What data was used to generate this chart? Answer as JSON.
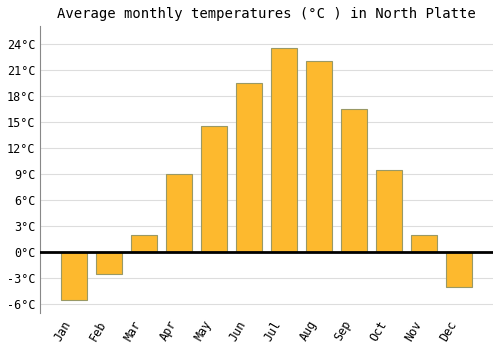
{
  "months": [
    "Jan",
    "Feb",
    "Mar",
    "Apr",
    "May",
    "Jun",
    "Jul",
    "Aug",
    "Sep",
    "Oct",
    "Nov",
    "Dec"
  ],
  "values": [
    -5.5,
    -2.5,
    2.0,
    9.0,
    14.5,
    19.5,
    23.5,
    22.0,
    16.5,
    9.5,
    2.0,
    -4.0
  ],
  "bar_color": "#FDB92E",
  "bar_edge_color": "#999966",
  "title": "Average monthly temperatures (°C ) in North Platte",
  "ylim": [
    -7,
    26
  ],
  "yticks": [
    -6,
    -3,
    0,
    3,
    6,
    9,
    12,
    15,
    18,
    21,
    24
  ],
  "ytick_labels": [
    "-6°C",
    "-3°C",
    "0°C",
    "3°C",
    "6°C",
    "9°C",
    "12°C",
    "15°C",
    "18°C",
    "21°C",
    "24°C"
  ],
  "background_color": "#ffffff",
  "grid_color": "#dddddd",
  "zero_line_color": "#000000",
  "title_fontsize": 10,
  "tick_fontsize": 8.5,
  "bar_width": 0.75
}
